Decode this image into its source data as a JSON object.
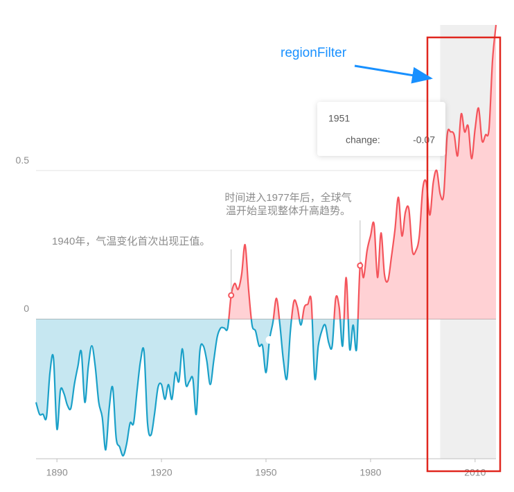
{
  "chart_data": {
    "type": "area",
    "x": [
      1884,
      1885,
      1886,
      1887,
      1888,
      1889,
      1890,
      1891,
      1892,
      1893,
      1894,
      1895,
      1896,
      1897,
      1898,
      1899,
      1900,
      1901,
      1902,
      1903,
      1904,
      1905,
      1906,
      1907,
      1908,
      1909,
      1910,
      1911,
      1912,
      1913,
      1914,
      1915,
      1916,
      1917,
      1918,
      1919,
      1920,
      1921,
      1922,
      1923,
      1924,
      1925,
      1926,
      1927,
      1928,
      1929,
      1930,
      1931,
      1932,
      1933,
      1934,
      1935,
      1936,
      1937,
      1938,
      1939,
      1940,
      1941,
      1942,
      1943,
      1944,
      1945,
      1946,
      1947,
      1948,
      1949,
      1950,
      1951,
      1952,
      1953,
      1954,
      1955,
      1956,
      1957,
      1958,
      1959,
      1960,
      1961,
      1962,
      1963,
      1964,
      1965,
      1966,
      1967,
      1968,
      1969,
      1970,
      1971,
      1972,
      1973,
      1974,
      1975,
      1976,
      1977,
      1978,
      1979,
      1980,
      1981,
      1982,
      1983,
      1984,
      1985,
      1986,
      1987,
      1988,
      1989,
      1990,
      1991,
      1992,
      1993,
      1994,
      1995,
      1996,
      1997,
      1998,
      1999,
      2000,
      2001,
      2002,
      2003,
      2004,
      2005,
      2006,
      2007,
      2008,
      2009,
      2010,
      2011,
      2012,
      2013,
      2014,
      2015,
      2016
    ],
    "values": [
      -0.28,
      -0.32,
      -0.32,
      -0.33,
      -0.18,
      -0.13,
      -0.37,
      -0.24,
      -0.25,
      -0.29,
      -0.3,
      -0.22,
      -0.16,
      -0.11,
      -0.28,
      -0.16,
      -0.09,
      -0.16,
      -0.28,
      -0.33,
      -0.44,
      -0.3,
      -0.23,
      -0.4,
      -0.43,
      -0.46,
      -0.42,
      -0.35,
      -0.35,
      -0.24,
      -0.14,
      -0.11,
      -0.35,
      -0.39,
      -0.32,
      -0.23,
      -0.22,
      -0.27,
      -0.22,
      -0.27,
      -0.18,
      -0.21,
      -0.1,
      -0.22,
      -0.21,
      -0.2,
      -0.32,
      -0.11,
      -0.09,
      -0.14,
      -0.22,
      -0.14,
      -0.06,
      -0.03,
      -0.03,
      -0.03,
      0.08,
      0.12,
      0.1,
      0.15,
      0.25,
      0.1,
      -0.02,
      -0.04,
      -0.09,
      -0.09,
      -0.18,
      -0.07,
      -0.01,
      0.07,
      -0.02,
      -0.14,
      -0.2,
      -0.04,
      0.06,
      0.04,
      -0.02,
      0.04,
      0.05,
      0.06,
      -0.2,
      -0.09,
      -0.04,
      -0.02,
      -0.08,
      -0.09,
      0.07,
      0.04,
      -0.09,
      0.14,
      -0.1,
      -0.02,
      -0.1,
      0.18,
      0.14,
      0.23,
      0.28,
      0.32,
      0.14,
      0.29,
      0.15,
      0.13,
      0.21,
      0.3,
      0.41,
      0.28,
      0.36,
      0.37,
      0.23,
      0.23,
      0.28,
      0.44,
      0.46,
      0.35,
      0.46,
      0.5,
      0.42,
      0.42,
      0.62,
      0.63,
      0.62,
      0.55,
      0.69,
      0.63,
      0.65,
      0.54,
      0.64,
      0.71,
      0.6,
      0.62,
      0.64,
      0.87,
      0.99
    ],
    "positive_color": "#f4545b",
    "negative_color": "#1aa0c8",
    "positive_fill": "#ffd1d4",
    "negative_fill": "#c6e7f1",
    "xlim": [
      1884,
      2016
    ],
    "xticks": [
      1890,
      1920,
      1950,
      1980,
      2010
    ],
    "ylim": [
      -0.47,
      0.99
    ],
    "yticks": [
      0,
      0.5
    ],
    "grid": true,
    "region_filter": [
      2000,
      2016
    ],
    "annotations": [
      {
        "x": 1940,
        "lines": [
          "1940年，气温变化首次出现正值。"
        ]
      },
      {
        "x": 1977,
        "lines": [
          "时间进入1977年后，全球气",
          "温开始呈现整体升高趋势。"
        ]
      }
    ],
    "tooltip": {
      "title": "1951",
      "name": "change:",
      "value": -0.07
    },
    "callout": "regionFilter"
  }
}
